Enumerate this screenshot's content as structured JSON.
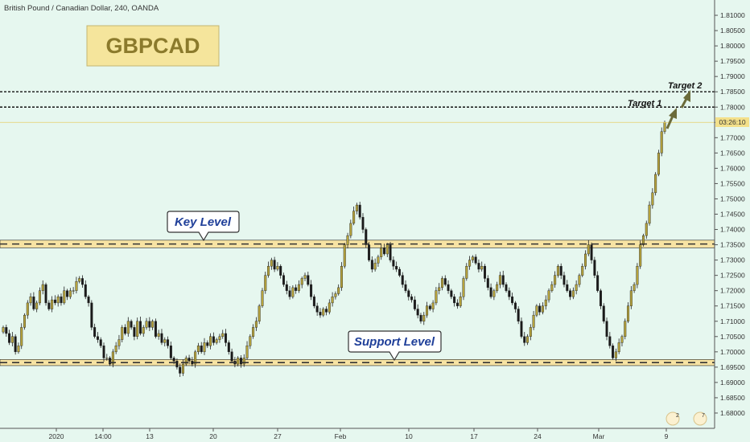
{
  "header": {
    "symbol_info": "British Pound / Canadian Dollar, 240, OANDA"
  },
  "badge": {
    "title": "GBPCAD"
  },
  "annotations": {
    "key_level": "Key Level",
    "support_level": "Support Level",
    "target_1": "Target 1",
    "target_2": "Target 2"
  },
  "price_tag": {
    "countdown": "03:26:10"
  },
  "toolbar": {
    "events_count": "2",
    "ideas_count": "7"
  },
  "colors": {
    "background": "#e6f7ef",
    "up_candle": "#b5a23c",
    "down_candle": "#1a1a1a",
    "zone_fill": "#f7e3a3",
    "badge_bg": "#f5e59c",
    "badge_text": "#8b7a2c",
    "callout_text": "#1f3f99",
    "arrow": "#6b6b3a",
    "price_tag_bg": "#f3e08a"
  },
  "chart_data": {
    "type": "candlestick",
    "y_axis": {
      "min": 1.675,
      "max": 1.815,
      "ticks": [
        "1.68000",
        "1.68500",
        "1.69000",
        "1.69500",
        "1.70000",
        "1.70500",
        "1.71000",
        "1.71500",
        "1.72000",
        "1.72500",
        "1.73000",
        "1.73500",
        "1.74000",
        "1.74500",
        "1.75000",
        "1.75500",
        "1.76000",
        "1.76500",
        "1.77000",
        "1.77500",
        "1.78000",
        "1.78500",
        "1.79000",
        "1.79500",
        "1.80000",
        "1.80500",
        "1.81000"
      ]
    },
    "x_axis": {
      "ticks": [
        "2020",
        "14:00",
        "13",
        "20",
        "27",
        "Feb",
        "10",
        "17",
        "24",
        "Mar",
        "9"
      ]
    },
    "key_level_zone": [
      1.734,
      1.7365
    ],
    "support_zone": [
      1.6955,
      1.6975
    ],
    "target_1": 1.78,
    "target_2": 1.785,
    "current_price": 1.775,
    "close_series": [
      1.708,
      1.706,
      1.703,
      1.705,
      1.7,
      1.702,
      1.708,
      1.712,
      1.716,
      1.718,
      1.714,
      1.716,
      1.72,
      1.722,
      1.716,
      1.714,
      1.717,
      1.716,
      1.718,
      1.716,
      1.72,
      1.718,
      1.72,
      1.72,
      1.723,
      1.724,
      1.722,
      1.718,
      1.716,
      1.708,
      1.705,
      1.704,
      1.702,
      1.698,
      1.698,
      1.696,
      1.7,
      1.702,
      1.704,
      1.708,
      1.706,
      1.71,
      1.708,
      1.705,
      1.71,
      1.706,
      1.708,
      1.71,
      1.708,
      1.71,
      1.705,
      1.706,
      1.703,
      1.704,
      1.702,
      1.698,
      1.697,
      1.695,
      1.693,
      1.696,
      1.698,
      1.697,
      1.696,
      1.7,
      1.702,
      1.7,
      1.703,
      1.702,
      1.705,
      1.703,
      1.704,
      1.705,
      1.706,
      1.703,
      1.7,
      1.697,
      1.696,
      1.698,
      1.696,
      1.698,
      1.702,
      1.705,
      1.708,
      1.71,
      1.715,
      1.72,
      1.725,
      1.728,
      1.73,
      1.727,
      1.728,
      1.725,
      1.722,
      1.72,
      1.718,
      1.721,
      1.72,
      1.722,
      1.724,
      1.725,
      1.722,
      1.718,
      1.715,
      1.713,
      1.712,
      1.714,
      1.713,
      1.716,
      1.718,
      1.719,
      1.721,
      1.728,
      1.735,
      1.738,
      1.742,
      1.746,
      1.748,
      1.744,
      1.74,
      1.735,
      1.73,
      1.727,
      1.729,
      1.731,
      1.734,
      1.732,
      1.735,
      1.73,
      1.728,
      1.727,
      1.725,
      1.722,
      1.72,
      1.718,
      1.717,
      1.714,
      1.712,
      1.71,
      1.712,
      1.715,
      1.714,
      1.716,
      1.72,
      1.721,
      1.724,
      1.722,
      1.72,
      1.718,
      1.716,
      1.715,
      1.718,
      1.724,
      1.728,
      1.73,
      1.731,
      1.729,
      1.727,
      1.728,
      1.724,
      1.721,
      1.718,
      1.72,
      1.722,
      1.725,
      1.722,
      1.72,
      1.718,
      1.716,
      1.714,
      1.71,
      1.705,
      1.703,
      1.705,
      1.708,
      1.712,
      1.715,
      1.713,
      1.715,
      1.717,
      1.72,
      1.722,
      1.725,
      1.728,
      1.725,
      1.722,
      1.72,
      1.718,
      1.72,
      1.722,
      1.725,
      1.728,
      1.732,
      1.735,
      1.73,
      1.725,
      1.72,
      1.715,
      1.71,
      1.705,
      1.702,
      1.698,
      1.7,
      1.703,
      1.705,
      1.71,
      1.715,
      1.72,
      1.722,
      1.728,
      1.735,
      1.738,
      1.742,
      1.748,
      1.752,
      1.758,
      1.765,
      1.772,
      1.775
    ]
  }
}
